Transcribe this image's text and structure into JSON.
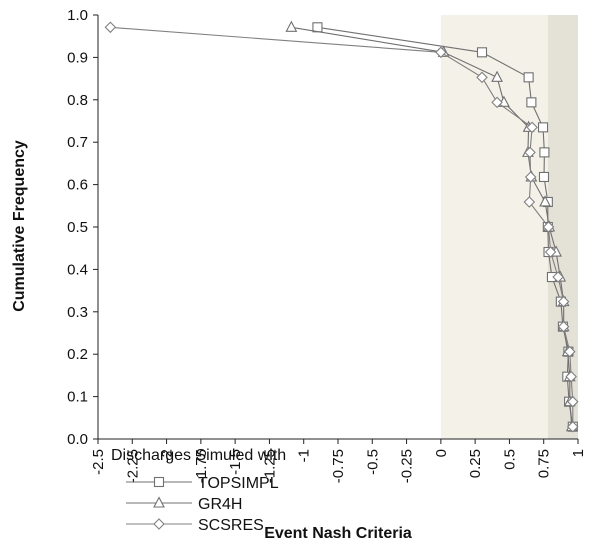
{
  "chart_data": {
    "type": "line",
    "title": "",
    "xlabel": "Event Nash Criteria",
    "ylabel": "Cumulative Frequency",
    "xlim": [
      -2.5,
      1.0
    ],
    "ylim": [
      0.0,
      1.0
    ],
    "x_ticks": [
      "-2.5",
      "-2.25",
      "-2",
      "-1.75",
      "-1.5",
      "-1.25",
      "-1",
      "-0.75",
      "-0.5",
      "-0.25",
      "0",
      "0.25",
      "0.5",
      "0.75",
      "1"
    ],
    "y_ticks": [
      "0.0",
      "0.1",
      "0.2",
      "0.3",
      "0.4",
      "0.5",
      "0.6",
      "0.7",
      "0.8",
      "0.9",
      "1.0"
    ],
    "grid": false,
    "shaded_bands": [
      {
        "x_from": 0.0,
        "x_to": 0.78,
        "color": "#f4f1e8"
      },
      {
        "x_from": 0.78,
        "x_to": 1.0,
        "color": "#e4e1d7"
      }
    ],
    "legend": {
      "title": "Discharges Simuled with",
      "placement": "bottom-left"
    },
    "series": [
      {
        "name": "TOPSIMPL",
        "marker": "square",
        "color": "#707070",
        "points": [
          [
            0.962,
            0.029
          ],
          [
            0.935,
            0.088
          ],
          [
            0.922,
            0.147
          ],
          [
            0.93,
            0.206
          ],
          [
            0.89,
            0.265
          ],
          [
            0.875,
            0.324
          ],
          [
            0.81,
            0.382
          ],
          [
            0.785,
            0.441
          ],
          [
            0.78,
            0.5
          ],
          [
            0.78,
            0.559
          ],
          [
            0.752,
            0.618
          ],
          [
            0.755,
            0.676
          ],
          [
            0.745,
            0.735
          ],
          [
            0.66,
            0.794
          ],
          [
            0.64,
            0.853
          ],
          [
            0.3,
            0.912
          ],
          [
            -0.9,
            0.971
          ]
        ]
      },
      {
        "name": "GR4H",
        "marker": "triangle",
        "color": "#707070",
        "points": [
          [
            0.955,
            0.029
          ],
          [
            0.94,
            0.088
          ],
          [
            0.94,
            0.147
          ],
          [
            0.925,
            0.206
          ],
          [
            0.895,
            0.265
          ],
          [
            0.895,
            0.324
          ],
          [
            0.87,
            0.382
          ],
          [
            0.84,
            0.441
          ],
          [
            0.79,
            0.5
          ],
          [
            0.76,
            0.559
          ],
          [
            0.66,
            0.618
          ],
          [
            0.635,
            0.676
          ],
          [
            0.64,
            0.735
          ],
          [
            0.46,
            0.794
          ],
          [
            0.41,
            0.853
          ],
          [
            0.02,
            0.912
          ],
          [
            -1.09,
            0.971
          ]
        ]
      },
      {
        "name": "SCSRES",
        "marker": "diamond",
        "color": "#808080",
        "points": [
          [
            0.962,
            0.029
          ],
          [
            0.962,
            0.088
          ],
          [
            0.95,
            0.147
          ],
          [
            0.94,
            0.206
          ],
          [
            0.895,
            0.265
          ],
          [
            0.895,
            0.324
          ],
          [
            0.855,
            0.382
          ],
          [
            0.8,
            0.441
          ],
          [
            0.785,
            0.5
          ],
          [
            0.645,
            0.559
          ],
          [
            0.655,
            0.618
          ],
          [
            0.65,
            0.676
          ],
          [
            0.665,
            0.735
          ],
          [
            0.41,
            0.794
          ],
          [
            0.3,
            0.853
          ],
          [
            0.0,
            0.912
          ],
          [
            -2.41,
            0.971
          ]
        ]
      }
    ]
  }
}
